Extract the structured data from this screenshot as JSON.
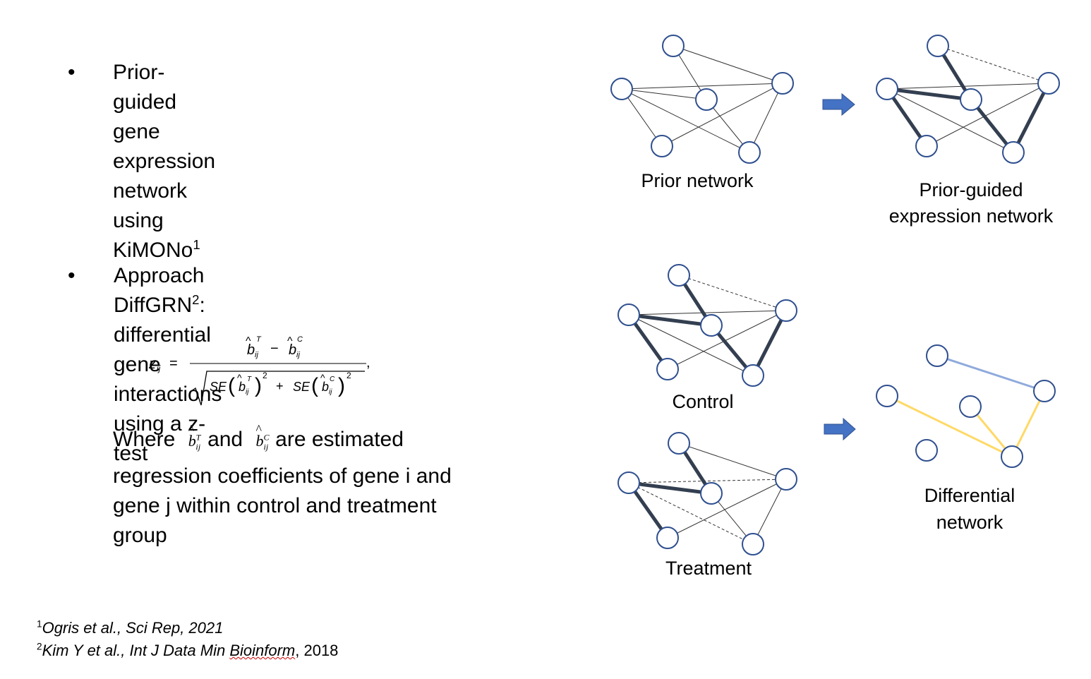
{
  "bullets": [
    {
      "symbol": "•",
      "line1": "Prior-guided gene expression",
      "line2": "network using KiMONo",
      "line2_sup": "1"
    },
    {
      "symbol": "•",
      "line1_a": "Approach DiffGRN",
      "line1_sup": "2",
      "line1_b": ": differential gene",
      "line2": "interactions using a z-test"
    }
  ],
  "formula": {
    "lhs": "z",
    "lhs_sub": "ij",
    "equals": "=",
    "num_left": "b",
    "num_left_sup": "T",
    "num_left_sub": "ij",
    "minus": "−",
    "num_right": "b",
    "num_right_sup": "C",
    "num_right_sub": "ij",
    "se1": "SE",
    "se2": "SE",
    "plus": "+",
    "sq": "2",
    "comma": ","
  },
  "where": {
    "w1": "Where",
    "w2": "and",
    "w3": "are estimated regression coefficients of gene i and gene j within control and treatment group",
    "coef_letter": "b",
    "coef_sup_t": "T",
    "coef_sup_c": "C",
    "coef_sub": "ij"
  },
  "diagram": {
    "prior_label": "Prior network",
    "guided_label_1": "Prior-guided",
    "guided_label_2": "expression network",
    "control_label": "Control",
    "treatment_label": "Treatment",
    "diff_label_1": "Differential",
    "diff_label_2": "network",
    "colors": {
      "node_stroke": "#2f4f8f",
      "thick_edge": "#333f50",
      "thin_edge": "#333333",
      "arrow": "#4472c4",
      "arrow_stroke": "#2f528f",
      "diff_blue": "#8faadc",
      "diff_yellow": "#ffd966"
    }
  },
  "references": [
    {
      "sup": "1",
      "text": "Ogris et al., Sci Rep, 2021"
    },
    {
      "sup": "2",
      "text_a": "Kim Y et al., Int J Data Min ",
      "text_b": "Bioinform",
      "text_c": ", 2018"
    }
  ]
}
